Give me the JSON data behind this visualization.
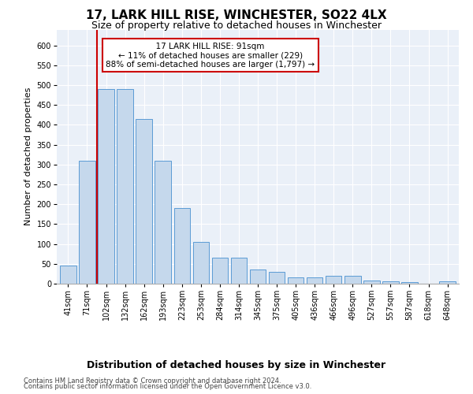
{
  "title": "17, LARK HILL RISE, WINCHESTER, SO22 4LX",
  "subtitle": "Size of property relative to detached houses in Winchester",
  "xlabel": "Distribution of detached houses by size in Winchester",
  "ylabel": "Number of detached properties",
  "footnote1": "Contains HM Land Registry data © Crown copyright and database right 2024.",
  "footnote2": "Contains public sector information licensed under the Open Government Licence v3.0.",
  "annotation_title": "17 LARK HILL RISE: 91sqm",
  "annotation_line1": "← 11% of detached houses are smaller (229)",
  "annotation_line2": "88% of semi-detached houses are larger (1,797) →",
  "bar_color": "#c5d8ec",
  "bar_edge_color": "#5b9bd5",
  "vline_color": "#cc0000",
  "vline_x": 2,
  "annotation_box_color": "#cc0000",
  "background_color": "#eaf0f8",
  "categories": [
    0,
    1,
    2,
    3,
    4,
    5,
    6,
    7,
    8,
    9,
    10,
    11,
    12,
    13,
    14,
    15,
    16,
    17,
    18,
    19,
    20
  ],
  "cat_labels": [
    "41sqm",
    "71sqm",
    "102sqm",
    "132sqm",
    "162sqm",
    "193sqm",
    "223sqm",
    "253sqm",
    "284sqm",
    "314sqm",
    "345sqm",
    "375sqm",
    "405sqm",
    "436sqm",
    "466sqm",
    "496sqm",
    "527sqm",
    "557sqm",
    "587sqm",
    "618sqm",
    "648sqm"
  ],
  "bar_heights": [
    45,
    310,
    490,
    490,
    415,
    310,
    190,
    105,
    65,
    65,
    35,
    30,
    15,
    15,
    20,
    20,
    8,
    5,
    3,
    0,
    5
  ],
  "ylim": [
    0,
    640
  ],
  "yticks": [
    0,
    50,
    100,
    150,
    200,
    250,
    300,
    350,
    400,
    450,
    500,
    550,
    600
  ],
  "title_fontsize": 11,
  "subtitle_fontsize": 9,
  "xlabel_fontsize": 9,
  "ylabel_fontsize": 8,
  "tick_fontsize": 7,
  "annot_fontsize": 7.5,
  "footnote_fontsize": 6
}
